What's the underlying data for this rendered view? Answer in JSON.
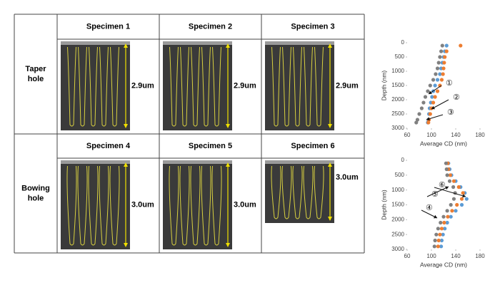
{
  "table": {
    "rows": [
      {
        "label": "Taper hole",
        "specimens": [
          {
            "title": "Specimen 1",
            "scale": "2.9um"
          },
          {
            "title": "Specimen 2",
            "scale": "2.9um"
          },
          {
            "title": "Specimen 3",
            "scale": "2.9um"
          }
        ]
      },
      {
        "label": "Bowing hole",
        "specimens": [
          {
            "title": "Specimen 4",
            "scale": "3.0um"
          },
          {
            "title": "Specimen 5",
            "scale": "3.0um"
          },
          {
            "title": "Specimen 6",
            "scale": "3.0um"
          }
        ]
      }
    ]
  },
  "chart_data": [
    {
      "type": "scatter",
      "xlabel": "Average CD (nm)",
      "ylabel": "Depth (nm)",
      "xlim": [
        60,
        180
      ],
      "xticks": [
        60,
        100,
        140,
        180
      ],
      "ylim": [
        3000,
        0
      ],
      "yticks": [
        0,
        500,
        1000,
        1500,
        2000,
        2500,
        3000
      ],
      "annotations": [
        "①",
        "②",
        "③"
      ],
      "series": [
        {
          "color": "#5b9bd5",
          "x": [
            125,
            122,
            120,
            118,
            116,
            114,
            110,
            106,
            103,
            101,
            99,
            97,
            96,
            95,
            94
          ],
          "values": [
            100,
            300,
            500,
            700,
            900,
            1100,
            1300,
            1500,
            1700,
            1900,
            2100,
            2300,
            2500,
            2700,
            2800
          ]
        },
        {
          "color": "#ed7d31",
          "x": [
            148,
            125,
            122,
            121,
            120,
            119,
            117,
            114,
            110,
            106,
            103,
            100,
            98,
            96,
            95
          ],
          "values": [
            100,
            300,
            500,
            700,
            900,
            1100,
            1300,
            1500,
            1700,
            1900,
            2100,
            2300,
            2500,
            2700,
            2800
          ]
        },
        {
          "color": "#808080",
          "x": [
            118,
            116,
            114,
            112,
            110,
            107,
            103,
            98,
            94,
            90,
            87,
            84,
            80,
            77,
            75
          ],
          "values": [
            100,
            300,
            500,
            700,
            900,
            1100,
            1300,
            1500,
            1700,
            1900,
            2100,
            2300,
            2500,
            2700,
            2800
          ]
        }
      ]
    },
    {
      "type": "scatter",
      "xlabel": "Average CD (nm)",
      "ylabel": "Depth (nm)",
      "xlim": [
        60,
        180
      ],
      "xticks": [
        60,
        100,
        140,
        180
      ],
      "ylim": [
        3000,
        0
      ],
      "yticks": [
        0,
        500,
        1000,
        1500,
        2000,
        2500,
        3000
      ],
      "annotations": [
        "⑥",
        "⑤",
        "④"
      ],
      "series": [
        {
          "color": "#5b9bd5",
          "x": [
            128,
            130,
            133,
            140,
            148,
            155,
            158,
            150,
            140,
            132,
            126,
            122,
            119,
            117,
            116
          ],
          "values": [
            100,
            300,
            500,
            700,
            900,
            1100,
            1300,
            1500,
            1700,
            1900,
            2100,
            2300,
            2500,
            2700,
            2900
          ]
        },
        {
          "color": "#ed7d31",
          "x": [
            127,
            128,
            131,
            137,
            145,
            152,
            150,
            142,
            134,
            127,
            121,
            117,
            114,
            112,
            111
          ],
          "values": [
            100,
            300,
            500,
            700,
            900,
            1100,
            1300,
            1500,
            1700,
            1900,
            2100,
            2300,
            2500,
            2700,
            2900
          ]
        },
        {
          "color": "#808080",
          "x": [
            124,
            125,
            126,
            130,
            136,
            139,
            137,
            132,
            126,
            120,
            115,
            111,
            108,
            106,
            105
          ],
          "values": [
            100,
            300,
            500,
            700,
            900,
            1100,
            1300,
            1500,
            1700,
            1900,
            2100,
            2300,
            2500,
            2700,
            2900
          ]
        }
      ]
    }
  ]
}
